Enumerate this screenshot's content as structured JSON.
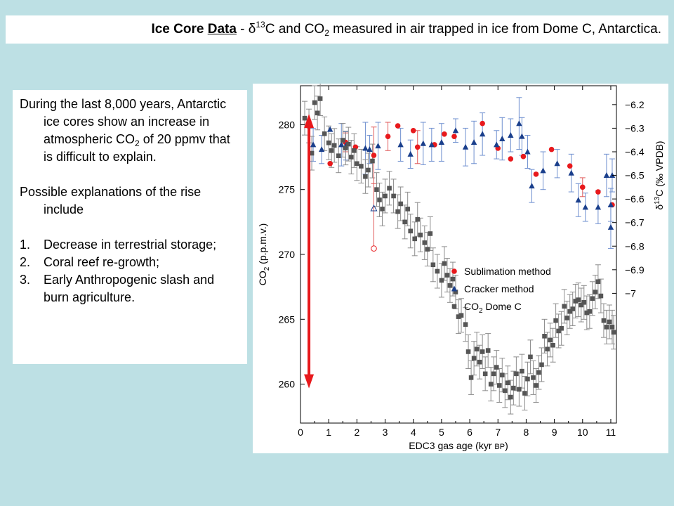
{
  "title": {
    "lead_bold": "Ice Core ",
    "lead_underline": "Data",
    "dash": " - ",
    "delta": "δ",
    "sup13": "13",
    "part2": "C and CO",
    "sub2": "2",
    "part3": " measured in air trapped in ice from Dome C, Antarctica."
  },
  "text": {
    "p1_a": "During the last 8,000 years, Antarctic ice cores show an increase in atmospheric CO",
    "p1_sub": "2",
    "p1_b": " of 20 ppmv that is difficult to explain.",
    "p2": "Possible explanations of the rise include",
    "list": [
      {
        "num": "1.",
        "text": "Decrease in terrestrial storage;"
      },
      {
        "num": "2.",
        "text": "Coral reef re-growth;"
      },
      {
        "num": "3.",
        "text": "Early Anthropogenic slash and burn agriculture."
      }
    ]
  },
  "colors": {
    "sublimation": "#e8191c",
    "sublimation_bar": "#e05a5a",
    "cracker": "#1a3f8c",
    "cracker_bar": "#6e8fcf",
    "co2": "#555555",
    "co2_bar": "#8c8c8c",
    "arrow": "#e8191c"
  },
  "chart_data": {
    "type": "scatter",
    "xlabel": "EDC3 gas age (kyr BP)",
    "xlim": [
      0,
      11.2
    ],
    "x_ticks": [
      0,
      1,
      2,
      3,
      4,
      5,
      6,
      7,
      8,
      9,
      10,
      11
    ],
    "ylabel_left": "CO2 (p.p.m.v.)",
    "ylim_left": [
      257,
      283
    ],
    "y_ticks_left": [
      260,
      265,
      270,
      275,
      280
    ],
    "ylabel_right": "δ13C (‰ VPDB)",
    "ylim_right": [
      -7.55,
      -6.12
    ],
    "y_ticks_right": [
      -6.2,
      -6.3,
      -6.4,
      -6.5,
      -6.6,
      -6.7,
      -6.8,
      -6.9,
      -7
    ],
    "y_ticks_right_labels": [
      "−6.2",
      "−6.3",
      "−6.4",
      "−6.5",
      "−6.6",
      "−6.7",
      "−6.8",
      "−6.9",
      "−7"
    ],
    "legend_position": "center-right",
    "legend": [
      {
        "key": "sublimation",
        "label": "Sublimation method"
      },
      {
        "key": "cracker",
        "label": "Cracker method"
      },
      {
        "key": "co2",
        "label_main": "CO",
        "label_sub": "2",
        "label_tail": " Dome C"
      }
    ],
    "series": [
      {
        "key": "sublimation",
        "axis": "right",
        "marker": "circle",
        "points": [
          {
            "x": 1.05,
            "y": -6.45,
            "err": 0.0
          },
          {
            "x": 1.6,
            "y": -6.36,
            "err": 0.04
          },
          {
            "x": 1.95,
            "y": -6.38,
            "err": 0.0
          },
          {
            "x": 2.6,
            "y": -6.415,
            "err": 0.12
          },
          {
            "x": 3.1,
            "y": -6.335,
            "err": 0.06
          },
          {
            "x": 3.45,
            "y": -6.29,
            "err": 0.0
          },
          {
            "x": 4.0,
            "y": -6.31,
            "err": 0.0
          },
          {
            "x": 4.15,
            "y": -6.38,
            "err": 0.07
          },
          {
            "x": 4.75,
            "y": -6.37,
            "err": 0.0
          },
          {
            "x": 5.1,
            "y": -6.325,
            "err": 0.0
          },
          {
            "x": 5.45,
            "y": -6.335,
            "err": 0.0
          },
          {
            "x": 6.45,
            "y": -6.28,
            "err": 0.0
          },
          {
            "x": 7.0,
            "y": -6.385,
            "err": 0.0
          },
          {
            "x": 7.45,
            "y": -6.43,
            "err": 0.0
          },
          {
            "x": 7.9,
            "y": -6.42,
            "err": 0.0
          },
          {
            "x": 8.35,
            "y": -6.495,
            "err": 0.0
          },
          {
            "x": 8.9,
            "y": -6.39,
            "err": 0.0
          },
          {
            "x": 9.55,
            "y": -6.46,
            "err": 0.0
          },
          {
            "x": 10.0,
            "y": -6.55,
            "err": 0.04
          },
          {
            "x": 10.55,
            "y": -6.57,
            "err": 0.0
          },
          {
            "x": 11.05,
            "y": -6.625,
            "err": 0.0
          },
          {
            "x": 2.6,
            "y": -6.81,
            "err": 0.0,
            "open": true
          }
        ]
      },
      {
        "key": "cracker",
        "axis": "right",
        "marker": "triangle",
        "points": [
          {
            "x": 0.45,
            "y": -6.37,
            "err": 0.07
          },
          {
            "x": 0.75,
            "y": -6.39,
            "err": 0.06
          },
          {
            "x": 1.05,
            "y": -6.305,
            "err": 0.0
          },
          {
            "x": 1.45,
            "y": -6.37,
            "err": 0.09
          },
          {
            "x": 1.6,
            "y": -6.375,
            "err": 0.06
          },
          {
            "x": 2.3,
            "y": -6.385,
            "err": 0.11
          },
          {
            "x": 2.45,
            "y": -6.39,
            "err": 0.06
          },
          {
            "x": 2.75,
            "y": -6.375,
            "err": 0.1
          },
          {
            "x": 3.55,
            "y": -6.37,
            "err": 0.07
          },
          {
            "x": 3.9,
            "y": -6.41,
            "err": 0.06
          },
          {
            "x": 4.35,
            "y": -6.365,
            "err": 0.09
          },
          {
            "x": 4.65,
            "y": -6.37,
            "err": 0.07
          },
          {
            "x": 5.0,
            "y": -6.36,
            "err": 0.08
          },
          {
            "x": 5.5,
            "y": -6.31,
            "err": 0.05
          },
          {
            "x": 5.85,
            "y": -6.38,
            "err": 0.08
          },
          {
            "x": 6.15,
            "y": -6.36,
            "err": 0.09
          },
          {
            "x": 6.45,
            "y": -6.325,
            "err": 0.09
          },
          {
            "x": 6.95,
            "y": -6.37,
            "err": 0.06
          },
          {
            "x": 7.15,
            "y": -6.345,
            "err": 0.09
          },
          {
            "x": 7.45,
            "y": -6.33,
            "err": 0.07
          },
          {
            "x": 7.75,
            "y": -6.28,
            "err": 0.11
          },
          {
            "x": 7.85,
            "y": -6.335,
            "err": 0.08
          },
          {
            "x": 8.05,
            "y": -6.4,
            "err": 0.07
          },
          {
            "x": 8.2,
            "y": -6.545,
            "err": 0.07
          },
          {
            "x": 8.6,
            "y": -6.48,
            "err": 0.08
          },
          {
            "x": 9.1,
            "y": -6.45,
            "err": 0.06
          },
          {
            "x": 9.6,
            "y": -6.49,
            "err": 0.08
          },
          {
            "x": 9.85,
            "y": -6.605,
            "err": 0.07
          },
          {
            "x": 10.1,
            "y": -6.635,
            "err": 0.06
          },
          {
            "x": 10.55,
            "y": -6.635,
            "err": 0.07
          },
          {
            "x": 10.85,
            "y": -6.5,
            "err": 0.09
          },
          {
            "x": 11.0,
            "y": -6.625,
            "err": 0.07
          },
          {
            "x": 11.0,
            "y": -6.72,
            "err": 0.09
          },
          {
            "x": 11.05,
            "y": -6.5,
            "err": 0.07
          },
          {
            "x": 2.6,
            "y": -6.64,
            "err": 0.0,
            "open": true
          }
        ]
      },
      {
        "key": "co2",
        "axis": "left",
        "marker": "square",
        "points": [
          {
            "x": 0.15,
            "y": 280.5,
            "err": 1.3
          },
          {
            "x": 0.3,
            "y": 279.9,
            "err": 1.3
          },
          {
            "x": 0.4,
            "y": 277.8,
            "err": 1.3
          },
          {
            "x": 0.5,
            "y": 281.7,
            "err": 1.3
          },
          {
            "x": 0.6,
            "y": 280.9,
            "err": 1.3
          },
          {
            "x": 0.7,
            "y": 282.0,
            "err": 1.3
          },
          {
            "x": 0.85,
            "y": 279.3,
            "err": 1.3
          },
          {
            "x": 1.0,
            "y": 278.6,
            "err": 1.3
          },
          {
            "x": 1.1,
            "y": 278.0,
            "err": 1.3
          },
          {
            "x": 1.2,
            "y": 278.4,
            "err": 1.3
          },
          {
            "x": 1.35,
            "y": 277.6,
            "err": 1.3
          },
          {
            "x": 1.5,
            "y": 278.8,
            "err": 1.3
          },
          {
            "x": 1.6,
            "y": 278.2,
            "err": 1.3
          },
          {
            "x": 1.7,
            "y": 278.5,
            "err": 1.3
          },
          {
            "x": 1.8,
            "y": 277.5,
            "err": 1.3
          },
          {
            "x": 1.9,
            "y": 278.0,
            "err": 1.3
          },
          {
            "x": 2.0,
            "y": 277.0,
            "err": 1.3
          },
          {
            "x": 2.15,
            "y": 276.8,
            "err": 1.3
          },
          {
            "x": 2.3,
            "y": 276.0,
            "err": 1.3
          },
          {
            "x": 2.4,
            "y": 276.5,
            "err": 1.3
          },
          {
            "x": 2.55,
            "y": 277.2,
            "err": 1.3
          },
          {
            "x": 2.7,
            "y": 275.0,
            "err": 1.3
          },
          {
            "x": 2.8,
            "y": 274.2,
            "err": 1.3
          },
          {
            "x": 2.9,
            "y": 273.5,
            "err": 1.3
          },
          {
            "x": 3.0,
            "y": 274.5,
            "err": 1.3
          },
          {
            "x": 3.15,
            "y": 275.1,
            "err": 1.3
          },
          {
            "x": 3.3,
            "y": 274.5,
            "err": 1.3
          },
          {
            "x": 3.45,
            "y": 273.3,
            "err": 1.3
          },
          {
            "x": 3.55,
            "y": 273.9,
            "err": 1.3
          },
          {
            "x": 3.7,
            "y": 272.5,
            "err": 1.3
          },
          {
            "x": 3.8,
            "y": 273.5,
            "err": 1.3
          },
          {
            "x": 3.9,
            "y": 271.8,
            "err": 1.3
          },
          {
            "x": 4.05,
            "y": 271.2,
            "err": 1.3
          },
          {
            "x": 4.15,
            "y": 272.7,
            "err": 1.3
          },
          {
            "x": 4.25,
            "y": 271.5,
            "err": 1.3
          },
          {
            "x": 4.4,
            "y": 270.9,
            "err": 1.3
          },
          {
            "x": 4.5,
            "y": 270.4,
            "err": 1.3
          },
          {
            "x": 4.6,
            "y": 271.6,
            "err": 1.3
          },
          {
            "x": 4.7,
            "y": 269.2,
            "err": 1.3
          },
          {
            "x": 4.85,
            "y": 268.7,
            "err": 1.3
          },
          {
            "x": 5.0,
            "y": 268.0,
            "err": 1.3
          },
          {
            "x": 5.1,
            "y": 269.3,
            "err": 1.3
          },
          {
            "x": 5.2,
            "y": 268.4,
            "err": 1.3
          },
          {
            "x": 5.3,
            "y": 267.6,
            "err": 1.3
          },
          {
            "x": 5.4,
            "y": 268.1,
            "err": 1.3
          },
          {
            "x": 5.5,
            "y": 267.1,
            "err": 1.3
          },
          {
            "x": 5.6,
            "y": 265.2,
            "err": 1.3
          },
          {
            "x": 5.7,
            "y": 265.3,
            "err": 1.3
          },
          {
            "x": 5.85,
            "y": 264.6,
            "err": 1.3
          },
          {
            "x": 5.95,
            "y": 262.5,
            "err": 1.3
          },
          {
            "x": 6.05,
            "y": 260.5,
            "err": 1.3
          },
          {
            "x": 6.15,
            "y": 262.0,
            "err": 1.3
          },
          {
            "x": 6.25,
            "y": 262.7,
            "err": 1.3
          },
          {
            "x": 6.35,
            "y": 261.7,
            "err": 1.3
          },
          {
            "x": 6.45,
            "y": 262.5,
            "err": 1.3
          },
          {
            "x": 6.55,
            "y": 260.8,
            "err": 1.3
          },
          {
            "x": 6.65,
            "y": 262.6,
            "err": 1.3
          },
          {
            "x": 6.75,
            "y": 260.0,
            "err": 1.3
          },
          {
            "x": 6.85,
            "y": 260.8,
            "err": 1.3
          },
          {
            "x": 6.95,
            "y": 261.3,
            "err": 1.3
          },
          {
            "x": 7.05,
            "y": 259.9,
            "err": 1.3
          },
          {
            "x": 7.15,
            "y": 260.7,
            "err": 1.3
          },
          {
            "x": 7.25,
            "y": 259.5,
            "err": 1.3
          },
          {
            "x": 7.35,
            "y": 260.1,
            "err": 1.3
          },
          {
            "x": 7.45,
            "y": 259.0,
            "err": 1.3
          },
          {
            "x": 7.55,
            "y": 259.7,
            "err": 1.3
          },
          {
            "x": 7.65,
            "y": 260.8,
            "err": 1.3
          },
          {
            "x": 7.75,
            "y": 259.6,
            "err": 1.3
          },
          {
            "x": 7.85,
            "y": 261.0,
            "err": 1.3
          },
          {
            "x": 7.95,
            "y": 259.3,
            "err": 1.3
          },
          {
            "x": 8.05,
            "y": 260.4,
            "err": 1.3
          },
          {
            "x": 8.15,
            "y": 262.1,
            "err": 1.3
          },
          {
            "x": 8.25,
            "y": 260.5,
            "err": 1.3
          },
          {
            "x": 8.35,
            "y": 259.9,
            "err": 1.3
          },
          {
            "x": 8.45,
            "y": 260.9,
            "err": 1.3
          },
          {
            "x": 8.55,
            "y": 261.5,
            "err": 1.3
          },
          {
            "x": 8.65,
            "y": 263.7,
            "err": 1.3
          },
          {
            "x": 8.75,
            "y": 262.7,
            "err": 1.3
          },
          {
            "x": 8.85,
            "y": 263.4,
            "err": 1.3
          },
          {
            "x": 8.95,
            "y": 263.0,
            "err": 1.3
          },
          {
            "x": 9.05,
            "y": 264.9,
            "err": 1.3
          },
          {
            "x": 9.15,
            "y": 264.1,
            "err": 1.3
          },
          {
            "x": 9.25,
            "y": 264.3,
            "err": 1.3
          },
          {
            "x": 9.35,
            "y": 266.0,
            "err": 1.3
          },
          {
            "x": 9.45,
            "y": 265.1,
            "err": 1.3
          },
          {
            "x": 9.55,
            "y": 265.6,
            "err": 1.3
          },
          {
            "x": 9.65,
            "y": 265.8,
            "err": 1.3
          },
          {
            "x": 9.75,
            "y": 266.4,
            "err": 1.3
          },
          {
            "x": 9.85,
            "y": 266.5,
            "err": 1.3
          },
          {
            "x": 9.95,
            "y": 266.1,
            "err": 1.3
          },
          {
            "x": 10.05,
            "y": 266.3,
            "err": 1.3
          },
          {
            "x": 10.15,
            "y": 265.5,
            "err": 1.3
          },
          {
            "x": 10.25,
            "y": 265.6,
            "err": 1.3
          },
          {
            "x": 10.35,
            "y": 266.6,
            "err": 1.3
          },
          {
            "x": 10.45,
            "y": 267.1,
            "err": 1.3
          },
          {
            "x": 10.55,
            "y": 267.9,
            "err": 1.3
          },
          {
            "x": 10.65,
            "y": 266.8,
            "err": 1.3
          },
          {
            "x": 10.75,
            "y": 264.9,
            "err": 1.3
          },
          {
            "x": 10.85,
            "y": 264.4,
            "err": 1.3
          },
          {
            "x": 10.95,
            "y": 264.8,
            "err": 1.3
          },
          {
            "x": 11.05,
            "y": 264.4,
            "err": 1.3
          },
          {
            "x": 11.1,
            "y": 264.0,
            "err": 1.3
          }
        ]
      }
    ],
    "annotation_arrow": {
      "x": 0.3,
      "y_from": 280.5,
      "y_to": 260.0
    }
  }
}
